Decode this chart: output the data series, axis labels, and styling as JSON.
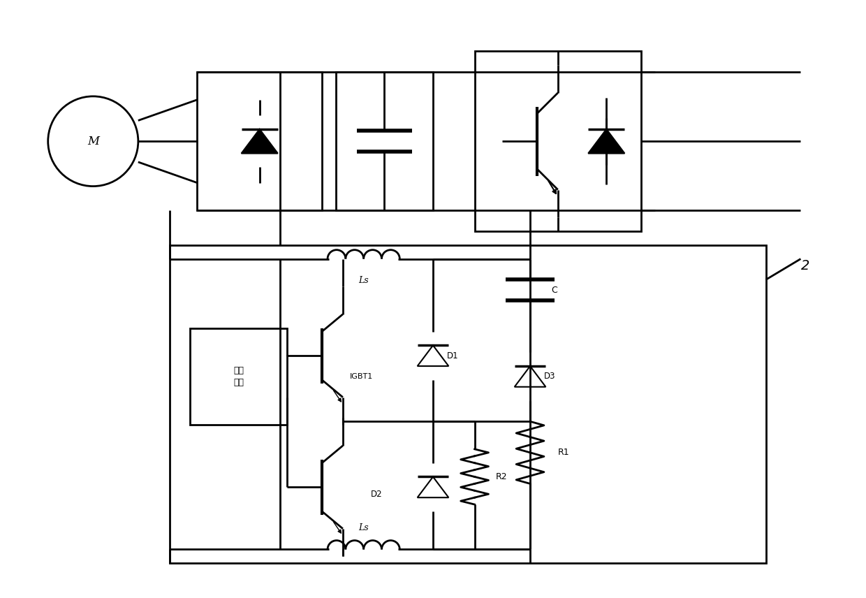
{
  "bg_color": "#ffffff",
  "lc": "#000000",
  "lw": 2.0,
  "label_2": "2",
  "label_Ls_top": "Ls",
  "label_Ls_bot": "Ls",
  "label_C": "C",
  "label_D1": "D1",
  "label_D2": "D2",
  "label_D3": "D3",
  "label_R1": "R1",
  "label_R2": "R2",
  "label_IGBT1": "IGBT1",
  "label_M": "M",
  "label_drive_l1": "驱动",
  "label_drive_l2": "信号"
}
